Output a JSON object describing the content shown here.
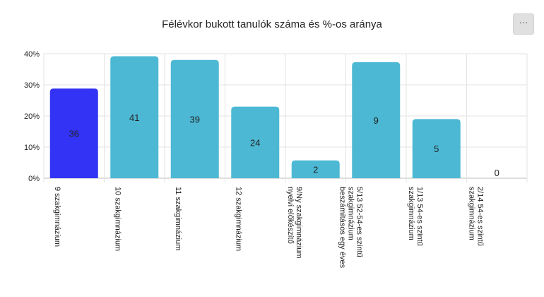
{
  "menu": {
    "icon": "more-horizontal-icon",
    "label": "···"
  },
  "chart_data": {
    "type": "bar",
    "title": "Félévkor bukott tanulók száma és %-os aránya",
    "xlabel": "",
    "ylabel": "",
    "ylim": [
      0,
      40
    ],
    "yticks": [
      "0%",
      "10%",
      "20%",
      "30%",
      "40%"
    ],
    "grid": true,
    "categories": [
      [
        "9 szakgimnázium"
      ],
      [
        "10 szakgimnázium"
      ],
      [
        "11 szakgimnázium"
      ],
      [
        "12 szakgimnázium"
      ],
      [
        "9/Ny szakgimnázium",
        "nyelvi előkészítő"
      ],
      [
        "5/13 52-54-es szintű",
        "szakgimnázium",
        "beszámításos egy éves"
      ],
      [
        "1/13 54-es szintű",
        "szakgimnázium"
      ],
      [
        "2/14 54-es szintű",
        "szakgimnázium"
      ]
    ],
    "values": [
      28.8,
      39.2,
      38.0,
      23.0,
      5.7,
      37.3,
      19.0,
      0
    ],
    "data_labels": [
      "36",
      "41",
      "39",
      "24",
      "2",
      "9",
      "5",
      "0"
    ],
    "colors": [
      "#3333f5",
      "#4cb8d4",
      "#4cb8d4",
      "#4cb8d4",
      "#4cb8d4",
      "#4cb8d4",
      "#4cb8d4",
      "#4cb8d4"
    ]
  }
}
